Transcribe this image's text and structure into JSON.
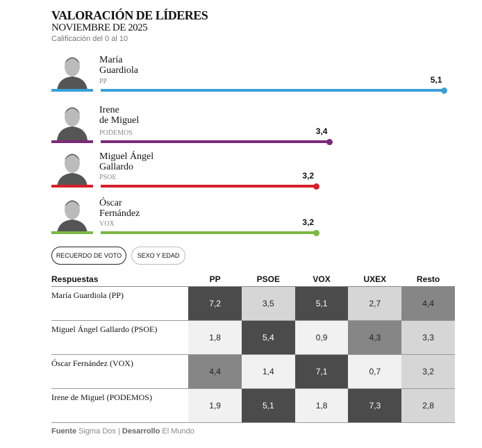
{
  "title": "VALORACIÓN DE LÍDERES",
  "subtitle": "NOVIEMBRE DE 2025",
  "note": "Calificación del 0 al 10",
  "chart_data": [
    {
      "type": "bar",
      "orientation": "horizontal",
      "scale": [
        0,
        10
      ],
      "leaders": [
        {
          "name_line1": "María",
          "name_line2": "Guardiola",
          "party": "PP",
          "value": 5.1,
          "label": "5,1",
          "color": "#3aa0d8"
        },
        {
          "name_line1": "Irene",
          "name_line2": "de Miguel",
          "party": "PODEMOS",
          "value": 3.4,
          "label": "3,4",
          "color": "#7b2a78"
        },
        {
          "name_line1": "Miguel Ángel",
          "name_line2": "Gallardo",
          "party": "PSOE",
          "value": 3.2,
          "label": "3,2",
          "color": "#d4202a"
        },
        {
          "name_line1": "Óscar",
          "name_line2": "Fernández",
          "party": "VOX",
          "value": 3.2,
          "label": "3,2",
          "color": "#7cb844"
        }
      ]
    },
    {
      "type": "heatmap",
      "columns": [
        "Respuestas",
        "PP",
        "PSOE",
        "VOX",
        "UXEX",
        "Resto"
      ],
      "rows": [
        {
          "label": "María Guardiola (PP)",
          "values": [
            "7,2",
            "3,5",
            "5,1",
            "2,7",
            "4,4"
          ]
        },
        {
          "label": "Miguel Ángel Gallardo (PSOE)",
          "values": [
            "1,8",
            "5,4",
            "0,9",
            "4,3",
            "3,3"
          ]
        },
        {
          "label": "Óscar Fernández (VOX)",
          "values": [
            "4,4",
            "1,4",
            "7,1",
            "0,7",
            "3,2"
          ]
        },
        {
          "label": "Irene de Miguel (PODEMOS)",
          "values": [
            "1,9",
            "5,1",
            "1,8",
            "7,3",
            "2,8"
          ]
        }
      ]
    }
  ],
  "tabs": [
    {
      "label": "RECUERDO DE VOTO",
      "active": true
    },
    {
      "label": "SEXO Y EDAD",
      "active": false
    }
  ],
  "footer": {
    "source_label": "Fuente",
    "source": "Sigma Dos",
    "sep": "|",
    "dev_label": "Desarrollo",
    "dev": "El Mundo"
  }
}
